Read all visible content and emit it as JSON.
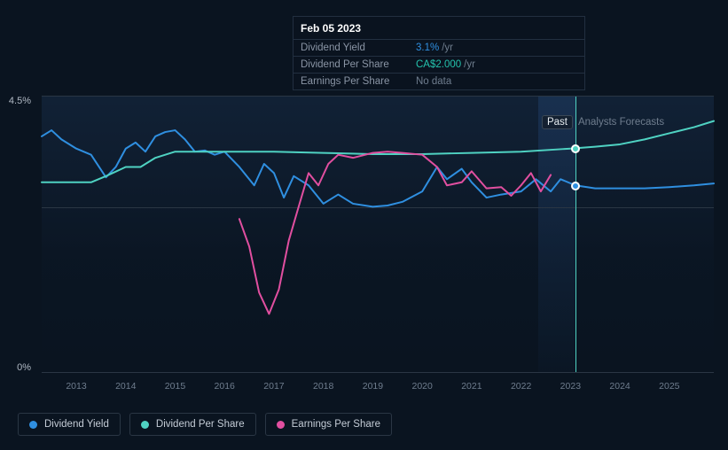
{
  "tooltip": {
    "date": "Feb 05 2023",
    "rows": [
      {
        "label": "Dividend Yield",
        "value": "3.1%",
        "suffix": "/yr",
        "color": "#2f8fe0"
      },
      {
        "label": "Dividend Per Share",
        "value": "CA$2.000",
        "suffix": "/yr",
        "color": "#24c3ad"
      },
      {
        "label": "Earnings Per Share",
        "value": "No data",
        "suffix": "",
        "color": "#6f7d8e"
      }
    ]
  },
  "chart": {
    "background_color": "#0a1420",
    "grid_color": "#2a3644",
    "text_color": "#6f7d8e",
    "y": {
      "min": 0,
      "max": 4.5,
      "ticks": [
        0,
        4.5
      ],
      "labels": [
        "0%",
        "4.5%"
      ],
      "midline": 2.7
    },
    "x": {
      "labels": [
        "2013",
        "2014",
        "2015",
        "2016",
        "2017",
        "2018",
        "2019",
        "2020",
        "2021",
        "2022",
        "2023",
        "2024",
        "2025"
      ],
      "start_year": 2012.3,
      "end_year": 2025.9,
      "forecast_start": 2022.35,
      "forecast_end": 2023.1,
      "hover_at": 2023.1
    },
    "hover_markers": [
      {
        "series": "dividend_yield",
        "y": 3.05,
        "color": "#2f8fe0"
      },
      {
        "series": "dividend_per_share",
        "y": 3.65,
        "color": "#4fd2c2"
      }
    ],
    "badge": {
      "past": "Past",
      "forecast": "Analysts Forecasts"
    },
    "series": [
      {
        "name": "dividend_yield",
        "color": "#2f8fe0",
        "width": 2,
        "points": [
          [
            2012.3,
            3.85
          ],
          [
            2012.5,
            3.95
          ],
          [
            2012.7,
            3.8
          ],
          [
            2013.0,
            3.65
          ],
          [
            2013.3,
            3.55
          ],
          [
            2013.6,
            3.18
          ],
          [
            2013.8,
            3.35
          ],
          [
            2014.0,
            3.65
          ],
          [
            2014.2,
            3.75
          ],
          [
            2014.4,
            3.6
          ],
          [
            2014.6,
            3.85
          ],
          [
            2014.8,
            3.92
          ],
          [
            2015.0,
            3.95
          ],
          [
            2015.2,
            3.8
          ],
          [
            2015.4,
            3.6
          ],
          [
            2015.6,
            3.62
          ],
          [
            2015.8,
            3.55
          ],
          [
            2016.0,
            3.6
          ],
          [
            2016.3,
            3.35
          ],
          [
            2016.6,
            3.05
          ],
          [
            2016.8,
            3.4
          ],
          [
            2017.0,
            3.25
          ],
          [
            2017.2,
            2.85
          ],
          [
            2017.4,
            3.2
          ],
          [
            2017.7,
            3.05
          ],
          [
            2018.0,
            2.75
          ],
          [
            2018.3,
            2.9
          ],
          [
            2018.6,
            2.75
          ],
          [
            2019.0,
            2.7
          ],
          [
            2019.3,
            2.72
          ],
          [
            2019.6,
            2.78
          ],
          [
            2020.0,
            2.95
          ],
          [
            2020.3,
            3.35
          ],
          [
            2020.5,
            3.15
          ],
          [
            2020.8,
            3.32
          ],
          [
            2021.0,
            3.1
          ],
          [
            2021.3,
            2.85
          ],
          [
            2021.6,
            2.9
          ],
          [
            2022.0,
            2.95
          ],
          [
            2022.3,
            3.15
          ],
          [
            2022.6,
            2.95
          ],
          [
            2022.8,
            3.15
          ],
          [
            2023.1,
            3.05
          ],
          [
            2023.5,
            3.0
          ],
          [
            2024.0,
            3.0
          ],
          [
            2024.5,
            3.0
          ],
          [
            2025.0,
            3.02
          ],
          [
            2025.5,
            3.05
          ],
          [
            2025.9,
            3.08
          ]
        ]
      },
      {
        "name": "dividend_per_share",
        "color": "#4fd2c2",
        "width": 2,
        "points": [
          [
            2012.3,
            3.1
          ],
          [
            2012.8,
            3.1
          ],
          [
            2013.0,
            3.1
          ],
          [
            2013.3,
            3.1
          ],
          [
            2013.6,
            3.2
          ],
          [
            2014.0,
            3.35
          ],
          [
            2014.3,
            3.35
          ],
          [
            2014.6,
            3.5
          ],
          [
            2015.0,
            3.6
          ],
          [
            2015.5,
            3.6
          ],
          [
            2016.0,
            3.6
          ],
          [
            2016.5,
            3.6
          ],
          [
            2017.0,
            3.6
          ],
          [
            2018.0,
            3.58
          ],
          [
            2019.0,
            3.56
          ],
          [
            2020.0,
            3.56
          ],
          [
            2021.0,
            3.58
          ],
          [
            2022.0,
            3.6
          ],
          [
            2023.0,
            3.65
          ],
          [
            2023.5,
            3.68
          ],
          [
            2024.0,
            3.72
          ],
          [
            2024.5,
            3.8
          ],
          [
            2025.0,
            3.9
          ],
          [
            2025.5,
            4.0
          ],
          [
            2025.9,
            4.1
          ]
        ]
      },
      {
        "name": "earnings_per_share",
        "color": "#e14fa0",
        "width": 2,
        "points": [
          [
            2016.3,
            2.5
          ],
          [
            2016.5,
            2.05
          ],
          [
            2016.7,
            1.3
          ],
          [
            2016.9,
            0.95
          ],
          [
            2017.1,
            1.35
          ],
          [
            2017.3,
            2.15
          ],
          [
            2017.5,
            2.7
          ],
          [
            2017.7,
            3.25
          ],
          [
            2017.9,
            3.05
          ],
          [
            2018.1,
            3.4
          ],
          [
            2018.3,
            3.55
          ],
          [
            2018.6,
            3.5
          ],
          [
            2019.0,
            3.58
          ],
          [
            2019.3,
            3.6
          ],
          [
            2019.6,
            3.58
          ],
          [
            2020.0,
            3.55
          ],
          [
            2020.3,
            3.35
          ],
          [
            2020.5,
            3.05
          ],
          [
            2020.8,
            3.1
          ],
          [
            2021.0,
            3.28
          ],
          [
            2021.3,
            3.0
          ],
          [
            2021.6,
            3.02
          ],
          [
            2021.8,
            2.88
          ],
          [
            2022.0,
            3.05
          ],
          [
            2022.2,
            3.25
          ],
          [
            2022.4,
            2.95
          ],
          [
            2022.6,
            3.22
          ]
        ]
      }
    ]
  },
  "legend": [
    {
      "label": "Dividend Yield",
      "color": "#2f8fe0"
    },
    {
      "label": "Dividend Per Share",
      "color": "#4fd2c2"
    },
    {
      "label": "Earnings Per Share",
      "color": "#e14fa0"
    }
  ]
}
